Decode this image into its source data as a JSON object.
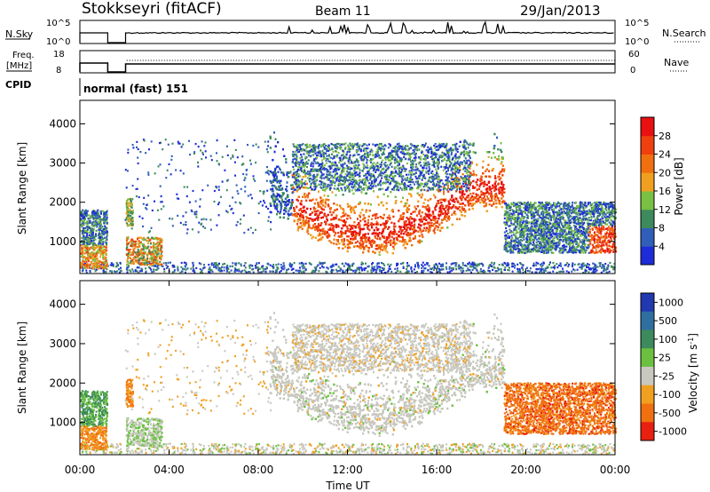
{
  "header": {
    "station": "Stokkseyri (fitACF)",
    "beam": "Beam 11",
    "date": "29/Jan/2013"
  },
  "nsky": {
    "label": "N.Sky",
    "tick_top": "10^5",
    "tick_bottom": "10^0",
    "right_label": "N.Search",
    "right_tick_top": "10^5",
    "right_tick_bottom": "10^0"
  },
  "freq": {
    "label_line1": "Freq.",
    "label_line2": "[MHz]",
    "tick_top": "18",
    "tick_bottom": "8",
    "right_label": "Nave",
    "right_tick_top": "60",
    "right_tick_bottom": "0"
  },
  "cpid": {
    "label": "CPID",
    "value": "normal (fast) 151"
  },
  "power_panel": {
    "ylabel": "Slant Range [km]",
    "yticks": [
      "1000",
      "2000",
      "3000",
      "4000"
    ],
    "colorbar_label": "Power [dB]",
    "colorbar_ticks": [
      "4",
      "8",
      "12",
      "16",
      "20",
      "24",
      "28"
    ],
    "colors": [
      "#1e2bd8",
      "#2f5fb8",
      "#3d8a5c",
      "#7ac043",
      "#f0a020",
      "#f07010",
      "#f04010",
      "#e81010"
    ]
  },
  "velocity_panel": {
    "ylabel": "Slant Range [km]",
    "yticks": [
      "1000",
      "2000",
      "3000",
      "4000"
    ],
    "colorbar_label": "Velocity [m s^-1]",
    "colorbar_ticks": [
      "1000",
      "500",
      "100",
      "25",
      "-25",
      "-100",
      "-500",
      "-1000"
    ],
    "colors": [
      "#2038b0",
      "#2f6fa0",
      "#3d8a5c",
      "#6cc040",
      "#c8c8c0",
      "#f0a020",
      "#f07010",
      "#e82010"
    ]
  },
  "xaxis": {
    "label": "Time UT",
    "ticks": [
      "00:00",
      "04:00",
      "08:00",
      "12:00",
      "16:00",
      "20:00",
      "00:00"
    ]
  }
}
